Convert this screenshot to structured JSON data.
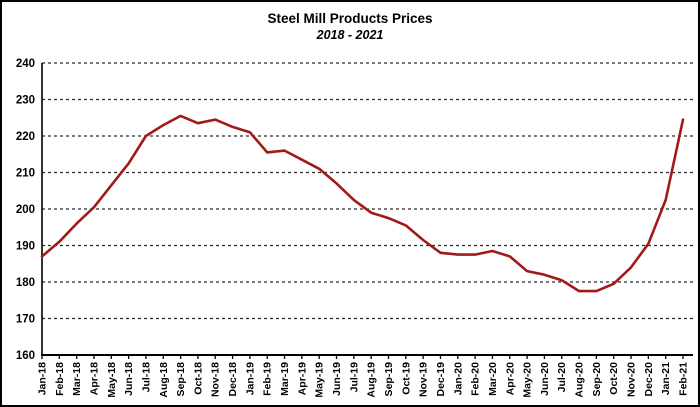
{
  "header": {
    "title": "Steel Mill Products Prices",
    "subtitle": "2018 - 2021"
  },
  "chart_data": {
    "type": "line",
    "title": "Steel Mill Products Prices",
    "subtitle": "2018 - 2021",
    "categories": [
      "Jan-18",
      "Feb-18",
      "Mar-18",
      "Apr-18",
      "May-18",
      "Jun-18",
      "Jul-18",
      "Aug-18",
      "Sep-18",
      "Oct-18",
      "Nov-18",
      "Dec-18",
      "Jan-19",
      "Feb-19",
      "Mar-19",
      "Apr-19",
      "May-19",
      "Jun-19",
      "Jul-19",
      "Aug-19",
      "Sep-19",
      "Oct-19",
      "Nov-19",
      "Dec-19",
      "Jan-20",
      "Feb-20",
      "Mar-20",
      "Apr-20",
      "May-20",
      "Jun-20",
      "Jul-20",
      "Aug-20",
      "Sep-20",
      "Oct-20",
      "Nov-20",
      "Dec-20",
      "Jan-21",
      "Feb-21"
    ],
    "series": [
      {
        "values": [
          187,
          191,
          196,
          200.5,
          206.5,
          212.5,
          220,
          223,
          225.5,
          223.5,
          224.5,
          222.5,
          221,
          215.5,
          216,
          213.5,
          211,
          207,
          202.5,
          199,
          197.5,
          195.5,
          191.5,
          188,
          187.5,
          187.5,
          188.5,
          187,
          183,
          182,
          180.5,
          177.5,
          177.5,
          179.5,
          184,
          190.5,
          202.5,
          224.5
        ],
        "color": "#a11a1a"
      }
    ],
    "xlabel": "",
    "ylabel": "",
    "ylim": [
      160,
      240
    ],
    "ytick_interval": 10,
    "yticks": [
      160,
      170,
      180,
      190,
      200,
      210,
      220,
      230,
      240
    ],
    "grid": "horizontal-dashed",
    "legend_position": "none"
  },
  "colors": {
    "line": "#a11a1a",
    "gridline": "#2b2b2b",
    "axis": "#000000",
    "text": "#000000",
    "background": "#ffffff",
    "frame_border": "#000000"
  }
}
